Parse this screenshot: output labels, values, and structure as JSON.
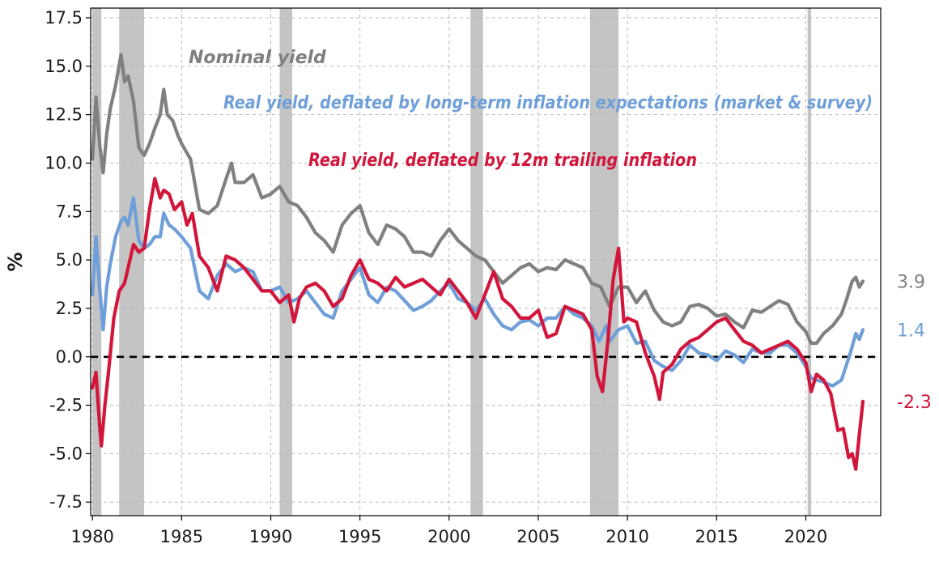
{
  "chart_data": {
    "type": "line",
    "title": "",
    "xlabel": "",
    "ylabel": "%",
    "xlim": [
      1979.9,
      2024.2
    ],
    "ylim": [
      -8.2,
      18.0
    ],
    "x_ticks": [
      "1980",
      "1985",
      "1990",
      "1995",
      "2000",
      "2005",
      "2010",
      "2015",
      "2020"
    ],
    "y_ticks": [
      "17.5",
      "15.0",
      "12.5",
      "10.0",
      "7.5",
      "5.0",
      "2.5",
      "0.0",
      "-2.5",
      "-5.0",
      "-7.5"
    ],
    "grid": true,
    "reference_line": {
      "y": 0.0,
      "style": "dashed",
      "color": "#000000"
    },
    "recessions": [
      {
        "start": 1980.0,
        "end": 1980.5
      },
      {
        "start": 1981.5,
        "end": 1982.9
      },
      {
        "start": 1990.5,
        "end": 1991.2
      },
      {
        "start": 2001.2,
        "end": 2001.9
      },
      {
        "start": 2007.9,
        "end": 2009.5
      },
      {
        "start": 2020.1,
        "end": 2020.3
      }
    ],
    "series": [
      {
        "name": "Nominal yield",
        "color": "#808080",
        "end_label": "3.9",
        "x": [
          1980.0,
          1980.2,
          1980.4,
          1980.6,
          1980.8,
          1981.0,
          1981.3,
          1981.6,
          1981.8,
          1982.0,
          1982.3,
          1982.6,
          1982.9,
          1983.2,
          1983.5,
          1983.8,
          1984.0,
          1984.2,
          1984.5,
          1984.8,
          1985.0,
          1985.5,
          1986.0,
          1986.5,
          1987.0,
          1987.5,
          1987.8,
          1988.0,
          1988.5,
          1989.0,
          1989.5,
          1990.0,
          1990.5,
          1991.0,
          1991.5,
          1992.0,
          1992.5,
          1993.0,
          1993.5,
          1994.0,
          1994.5,
          1995.0,
          1995.5,
          1996.0,
          1996.5,
          1997.0,
          1997.5,
          1998.0,
          1998.5,
          1999.0,
          1999.5,
          2000.0,
          2000.5,
          2001.0,
          2001.5,
          2002.0,
          2002.5,
          2003.0,
          2003.5,
          2004.0,
          2004.5,
          2005.0,
          2005.5,
          2006.0,
          2006.5,
          2007.0,
          2007.5,
          2008.0,
          2008.5,
          2009.0,
          2009.5,
          2010.0,
          2010.5,
          2011.0,
          2011.5,
          2012.0,
          2012.5,
          2013.0,
          2013.5,
          2014.0,
          2014.5,
          2015.0,
          2015.5,
          2016.0,
          2016.5,
          2017.0,
          2017.5,
          2018.0,
          2018.5,
          2019.0,
          2019.5,
          2020.0,
          2020.3,
          2020.6,
          2021.0,
          2021.5,
          2022.0,
          2022.3,
          2022.6,
          2022.8,
          2023.0,
          2023.2
        ],
        "values": [
          10.2,
          13.4,
          11.0,
          9.5,
          11.5,
          12.8,
          14.0,
          15.6,
          14.2,
          14.5,
          13.2,
          10.8,
          10.4,
          11.0,
          11.8,
          12.5,
          13.8,
          12.5,
          12.2,
          11.4,
          11.0,
          10.2,
          7.6,
          7.4,
          7.8,
          9.2,
          10.0,
          9.0,
          9.0,
          9.4,
          8.2,
          8.4,
          8.8,
          8.0,
          7.8,
          7.2,
          6.4,
          6.0,
          5.4,
          6.8,
          7.4,
          7.8,
          6.4,
          5.8,
          6.8,
          6.6,
          6.2,
          5.4,
          5.4,
          5.2,
          6.0,
          6.6,
          6.0,
          5.6,
          5.2,
          5.0,
          4.4,
          3.8,
          4.2,
          4.6,
          4.8,
          4.4,
          4.6,
          4.5,
          5.0,
          4.8,
          4.6,
          3.8,
          3.6,
          2.6,
          3.6,
          3.6,
          2.8,
          3.4,
          2.4,
          1.8,
          1.6,
          1.8,
          2.6,
          2.7,
          2.5,
          2.1,
          2.2,
          1.8,
          1.5,
          2.4,
          2.3,
          2.6,
          2.9,
          2.7,
          1.8,
          1.3,
          0.7,
          0.7,
          1.2,
          1.6,
          2.2,
          3.0,
          3.9,
          4.1,
          3.6,
          3.9
        ]
      },
      {
        "name": "Real yield, deflated by long-term inflation expectations (market & survey)",
        "color": "#6f9fd8",
        "end_label": "1.4",
        "x": [
          1980.0,
          1980.2,
          1980.4,
          1980.6,
          1980.8,
          1981.0,
          1981.3,
          1981.6,
          1981.8,
          1982.0,
          1982.3,
          1982.6,
          1982.9,
          1983.2,
          1983.5,
          1983.8,
          1984.0,
          1984.3,
          1984.6,
          1985.0,
          1985.5,
          1986.0,
          1986.5,
          1987.0,
          1987.5,
          1988.0,
          1988.5,
          1989.0,
          1989.5,
          1990.0,
          1990.5,
          1991.0,
          1991.5,
          1992.0,
          1992.5,
          1993.0,
          1993.5,
          1994.0,
          1994.5,
          1995.0,
          1995.5,
          1996.0,
          1996.5,
          1997.0,
          1997.5,
          1998.0,
          1998.5,
          1999.0,
          1999.5,
          2000.0,
          2000.5,
          2001.0,
          2001.5,
          2002.0,
          2002.5,
          2003.0,
          2003.5,
          2004.0,
          2004.5,
          2005.0,
          2005.5,
          2006.0,
          2006.5,
          2007.0,
          2007.5,
          2008.0,
          2008.4,
          2008.8,
          2009.0,
          2009.5,
          2010.0,
          2010.5,
          2011.0,
          2011.5,
          2012.0,
          2012.5,
          2013.0,
          2013.5,
          2014.0,
          2014.5,
          2015.0,
          2015.5,
          2016.0,
          2016.5,
          2017.0,
          2017.5,
          2018.0,
          2018.5,
          2019.0,
          2019.5,
          2020.0,
          2020.3,
          2020.6,
          2021.0,
          2021.5,
          2022.0,
          2022.5,
          2022.8,
          2023.0,
          2023.2
        ],
        "values": [
          3.2,
          6.2,
          3.6,
          1.4,
          3.6,
          4.8,
          6.2,
          7.0,
          7.2,
          6.8,
          8.2,
          6.0,
          5.6,
          5.8,
          6.2,
          6.2,
          7.4,
          6.8,
          6.6,
          6.2,
          5.6,
          3.4,
          3.0,
          4.2,
          4.8,
          4.4,
          4.6,
          4.4,
          3.4,
          3.4,
          3.6,
          2.8,
          3.0,
          3.4,
          2.8,
          2.2,
          2.0,
          3.4,
          4.0,
          4.6,
          3.2,
          2.8,
          3.6,
          3.4,
          2.9,
          2.4,
          2.6,
          2.9,
          3.4,
          3.8,
          3.0,
          2.8,
          2.4,
          3.0,
          2.2,
          1.6,
          1.4,
          1.8,
          1.9,
          1.6,
          2.0,
          2.0,
          2.6,
          2.2,
          2.0,
          1.6,
          0.8,
          1.6,
          0.8,
          1.4,
          1.6,
          0.7,
          0.8,
          -0.2,
          -0.5,
          -0.7,
          -0.2,
          0.6,
          0.2,
          0.1,
          -0.2,
          0.3,
          0.1,
          -0.3,
          0.4,
          0.2,
          0.2,
          0.6,
          0.6,
          0.2,
          -0.5,
          -1.1,
          -1.2,
          -1.3,
          -1.5,
          -1.2,
          0.2,
          1.2,
          0.9,
          1.4
        ]
      },
      {
        "name": "Real yield, deflated by 12m trailing inflation",
        "color": "#d2163b",
        "end_label": "-2.3",
        "x": [
          1980.0,
          1980.2,
          1980.4,
          1980.5,
          1980.7,
          1980.9,
          1981.2,
          1981.5,
          1981.8,
          1982.0,
          1982.3,
          1982.6,
          1982.9,
          1983.2,
          1983.5,
          1983.8,
          1984.0,
          1984.3,
          1984.6,
          1985.0,
          1985.3,
          1985.6,
          1986.0,
          1986.5,
          1987.0,
          1987.5,
          1988.0,
          1988.5,
          1989.0,
          1989.5,
          1990.0,
          1990.5,
          1991.0,
          1991.3,
          1991.6,
          1992.0,
          1992.5,
          1993.0,
          1993.5,
          1994.0,
          1994.5,
          1995.0,
          1995.5,
          1996.0,
          1996.5,
          1997.0,
          1997.5,
          1998.0,
          1998.5,
          1999.0,
          1999.5,
          2000.0,
          2000.5,
          2001.0,
          2001.5,
          2002.0,
          2002.5,
          2003.0,
          2003.5,
          2004.0,
          2004.5,
          2005.0,
          2005.5,
          2006.0,
          2006.5,
          2007.0,
          2007.5,
          2008.0,
          2008.3,
          2008.6,
          2008.9,
          2009.2,
          2009.5,
          2009.8,
          2010.0,
          2010.5,
          2011.0,
          2011.5,
          2011.8,
          2012.0,
          2012.5,
          2013.0,
          2013.5,
          2014.0,
          2014.5,
          2015.0,
          2015.5,
          2016.0,
          2016.5,
          2017.0,
          2017.5,
          2018.0,
          2018.5,
          2019.0,
          2019.5,
          2020.0,
          2020.3,
          2020.6,
          2021.0,
          2021.4,
          2021.8,
          2022.1,
          2022.4,
          2022.6,
          2022.8,
          2023.0,
          2023.2
        ],
        "values": [
          -1.6,
          -0.8,
          -3.5,
          -4.6,
          -2.5,
          -0.8,
          2.0,
          3.4,
          3.8,
          4.6,
          5.8,
          5.4,
          5.6,
          7.6,
          9.2,
          8.2,
          8.6,
          8.4,
          7.6,
          8.0,
          6.8,
          7.4,
          5.2,
          4.6,
          3.4,
          5.2,
          5.0,
          4.6,
          4.0,
          3.4,
          3.4,
          2.8,
          3.2,
          1.8,
          3.0,
          3.6,
          3.8,
          3.4,
          2.6,
          3.0,
          4.2,
          5.0,
          4.0,
          3.8,
          3.4,
          4.1,
          3.6,
          3.8,
          4.0,
          3.6,
          3.2,
          4.0,
          3.4,
          2.8,
          2.0,
          3.2,
          4.4,
          3.0,
          2.6,
          2.0,
          2.0,
          2.4,
          1.0,
          1.2,
          2.6,
          2.4,
          2.2,
          1.4,
          -1.0,
          -1.8,
          0.8,
          4.0,
          5.6,
          1.8,
          2.0,
          1.8,
          0.2,
          -1.0,
          -2.2,
          -0.8,
          -0.4,
          0.4,
          0.8,
          1.0,
          1.4,
          1.8,
          2.0,
          1.4,
          0.8,
          0.6,
          0.2,
          0.4,
          0.6,
          0.8,
          0.4,
          -0.3,
          -1.8,
          -0.9,
          -1.2,
          -1.9,
          -3.8,
          -3.7,
          -5.2,
          -5.0,
          -5.8,
          -4.0,
          -2.3
        ]
      }
    ]
  }
}
